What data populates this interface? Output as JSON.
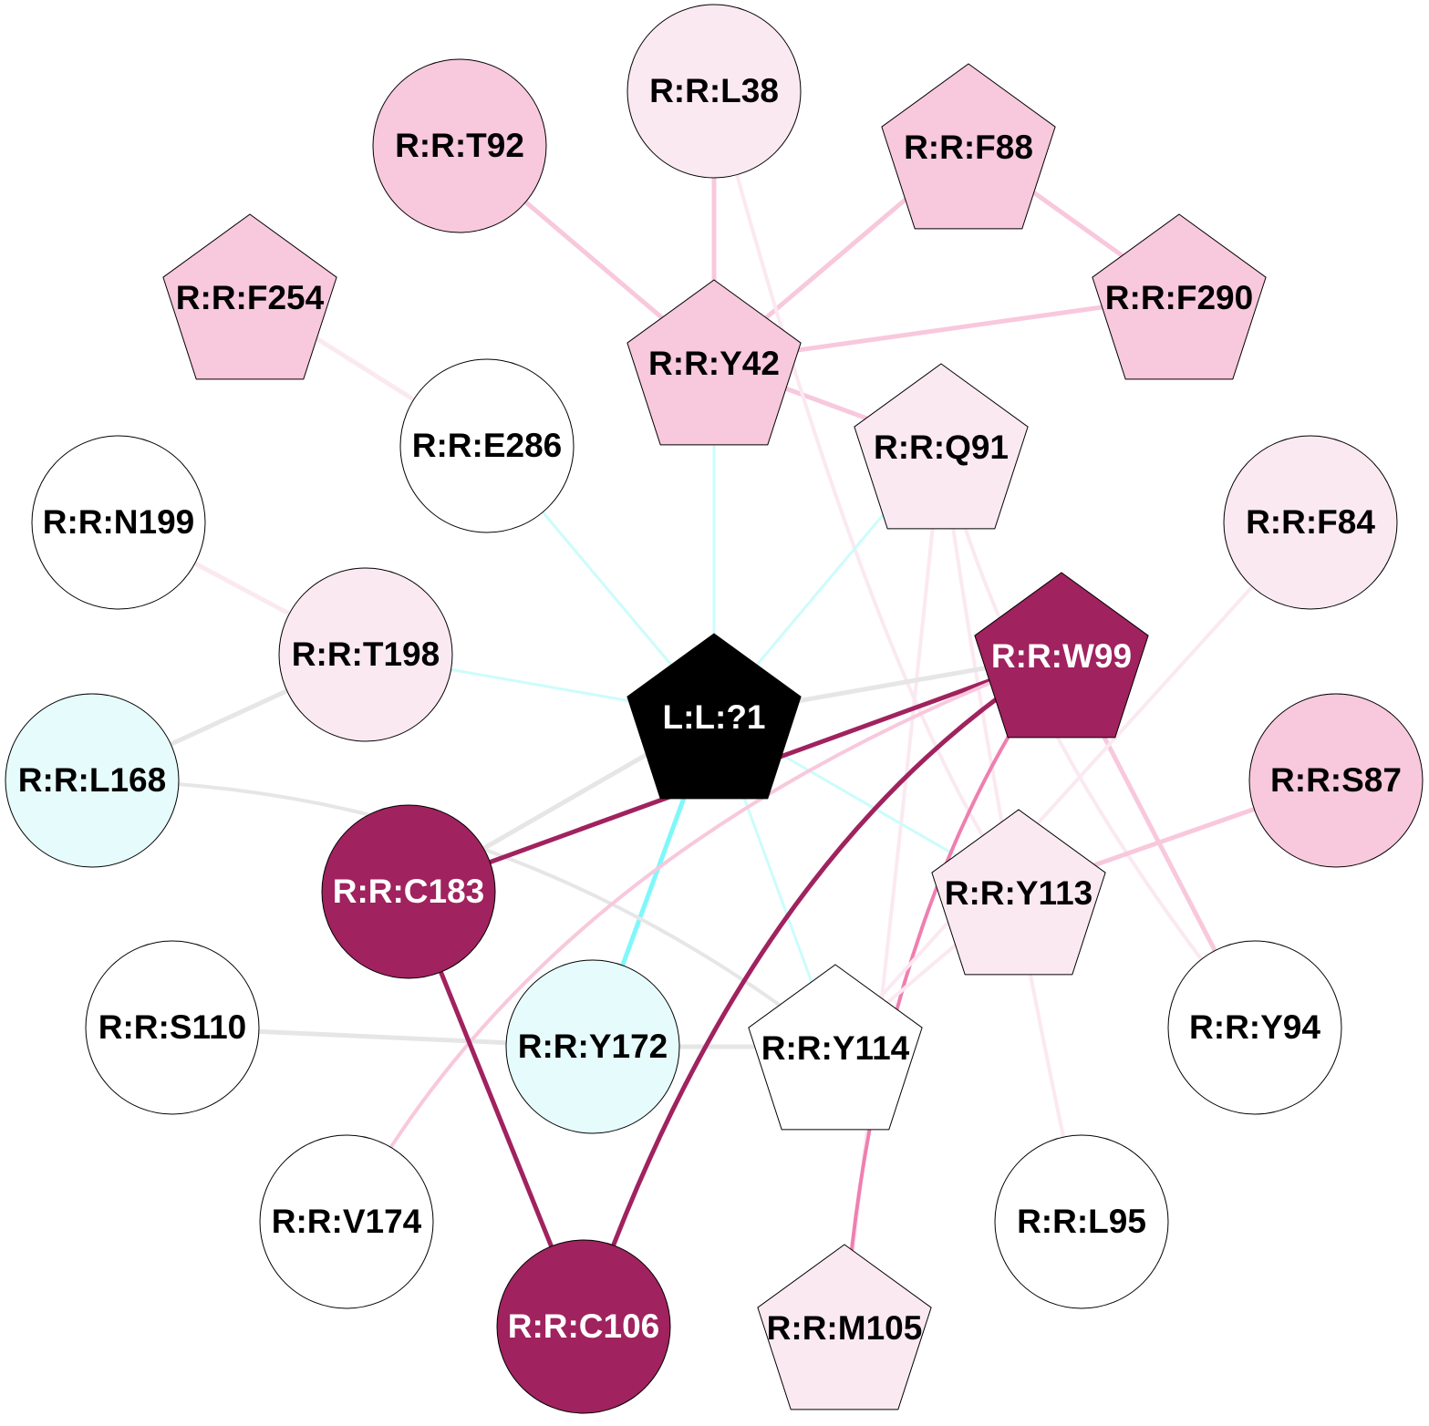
{
  "nodes": [
    {
      "label": "L:L:?1"
    },
    {
      "label": "R:R:L38"
    },
    {
      "label": "R:R:T92"
    },
    {
      "label": "R:R:F88"
    },
    {
      "label": "R:R:F254"
    },
    {
      "label": "R:R:Y42"
    },
    {
      "label": "R:R:F290"
    },
    {
      "label": "R:R:E286"
    },
    {
      "label": "R:R:Q91"
    },
    {
      "label": "R:R:N199"
    },
    {
      "label": "R:R:F84"
    },
    {
      "label": "R:R:T198"
    },
    {
      "label": "R:R:W99"
    },
    {
      "label": "R:R:L168"
    },
    {
      "label": "R:R:S87"
    },
    {
      "label": "R:R:C183"
    },
    {
      "label": "R:R:Y113"
    },
    {
      "label": "R:R:S110"
    },
    {
      "label": "R:R:Y172"
    },
    {
      "label": "R:R:Y114"
    },
    {
      "label": "R:R:Y94"
    },
    {
      "label": "R:R:V174"
    },
    {
      "label": "R:R:L95"
    },
    {
      "label": "R:R:C106"
    },
    {
      "label": "R:R:M105"
    }
  ]
}
